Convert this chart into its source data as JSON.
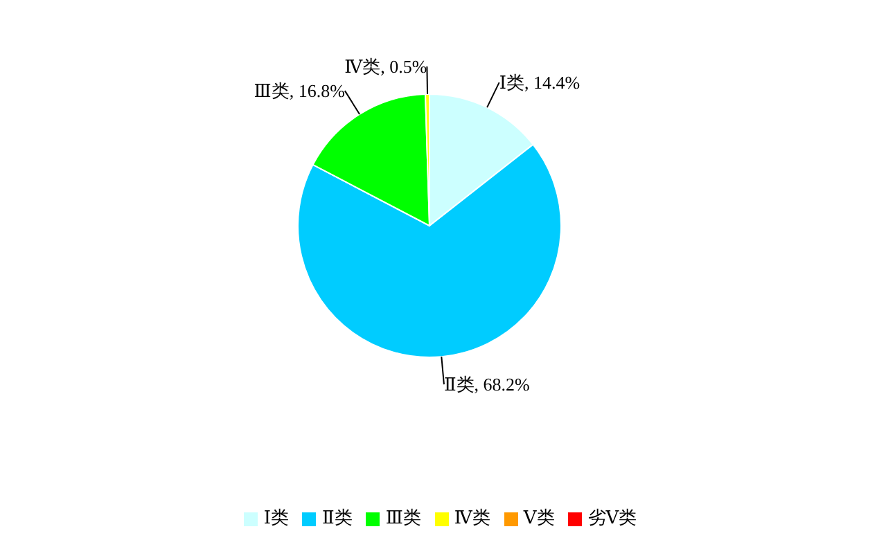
{
  "chart_data": {
    "type": "pie",
    "categories": [
      "Ⅰ类",
      "Ⅱ类",
      "Ⅲ类",
      "Ⅳ类",
      "Ⅴ类",
      "劣Ⅴ类"
    ],
    "values": [
      14.4,
      68.2,
      16.8,
      0.5,
      0,
      0
    ],
    "value_labels": [
      "Ⅰ类, 14.4%",
      "Ⅱ类, 68.2%",
      "Ⅲ类, 16.8%",
      "Ⅳ类, 0.5%",
      null,
      null
    ],
    "colors": [
      "#ccffff",
      "#00ccff",
      "#00ff00",
      "#ffff00",
      "#ff9900",
      "#ff0000"
    ],
    "legend": "bottom"
  }
}
